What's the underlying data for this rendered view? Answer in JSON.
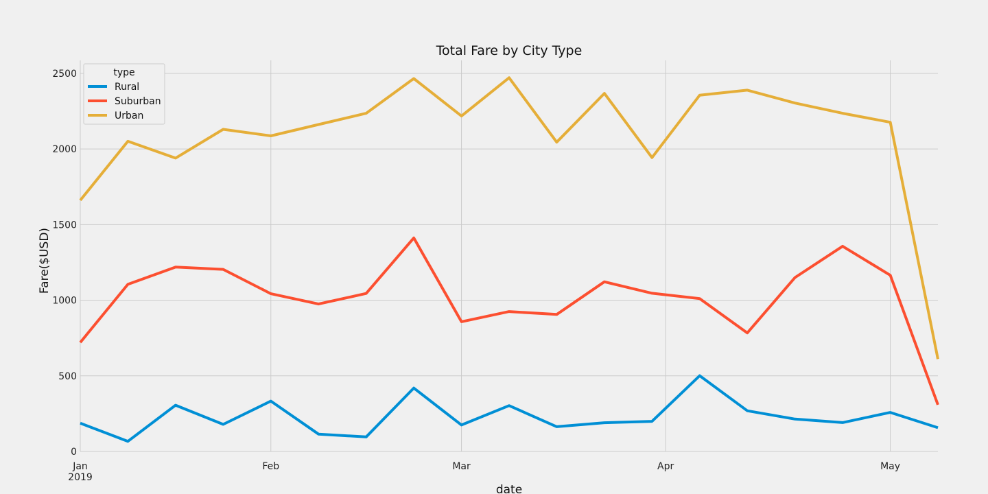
{
  "chart_data": {
    "type": "line",
    "title": "Total Fare by City Type",
    "xlabel": "date",
    "ylabel": "Fare($USD)",
    "x": [
      "2019-01-06",
      "2019-01-13",
      "2019-01-20",
      "2019-01-27",
      "2019-02-03",
      "2019-02-10",
      "2019-02-17",
      "2019-02-24",
      "2019-03-03",
      "2019-03-10",
      "2019-03-17",
      "2019-03-24",
      "2019-03-31",
      "2019-04-07",
      "2019-04-14",
      "2019-04-21",
      "2019-04-28",
      "2019-05-05",
      "2019-05-12"
    ],
    "series": [
      {
        "name": "Rural",
        "color": "#008fd5",
        "values": [
          187,
          67,
          306,
          179,
          333,
          115,
          96,
          419,
          175,
          303,
          164,
          190,
          199,
          501,
          269,
          214,
          191,
          258,
          157
        ]
      },
      {
        "name": "Suburban",
        "color": "#fc4f30",
        "values": [
          721,
          1105,
          1219,
          1204,
          1043,
          975,
          1045,
          1412,
          858,
          925,
          906,
          1122,
          1046,
          1011,
          784,
          1150,
          1357,
          1165,
          309
        ]
      },
      {
        "name": "Urban",
        "color": "#e5ae38",
        "values": [
          1661,
          2051,
          1940,
          2130,
          2087,
          2162,
          2236,
          2466,
          2218,
          2471,
          2045,
          2368,
          1943,
          2356,
          2389,
          2304,
          2236,
          2177,
          611
        ]
      }
    ],
    "x_ticks": [
      {
        "date": "2019-01-06",
        "label": "Jan",
        "sublabel": "2019"
      },
      {
        "date": "2019-02-03",
        "label": "Feb"
      },
      {
        "date": "2019-03-03",
        "label": "Mar"
      },
      {
        "date": "2019-04-02",
        "label": "Apr"
      },
      {
        "date": "2019-05-05",
        "label": "May"
      }
    ],
    "y_ticks": [
      0,
      500,
      1000,
      1500,
      2000,
      2500
    ],
    "ylim": [
      0,
      2586
    ],
    "xlim": [
      "2019-01-06",
      "2019-05-12"
    ],
    "grid": true,
    "legend": {
      "title": "type",
      "position": "top-left"
    }
  }
}
